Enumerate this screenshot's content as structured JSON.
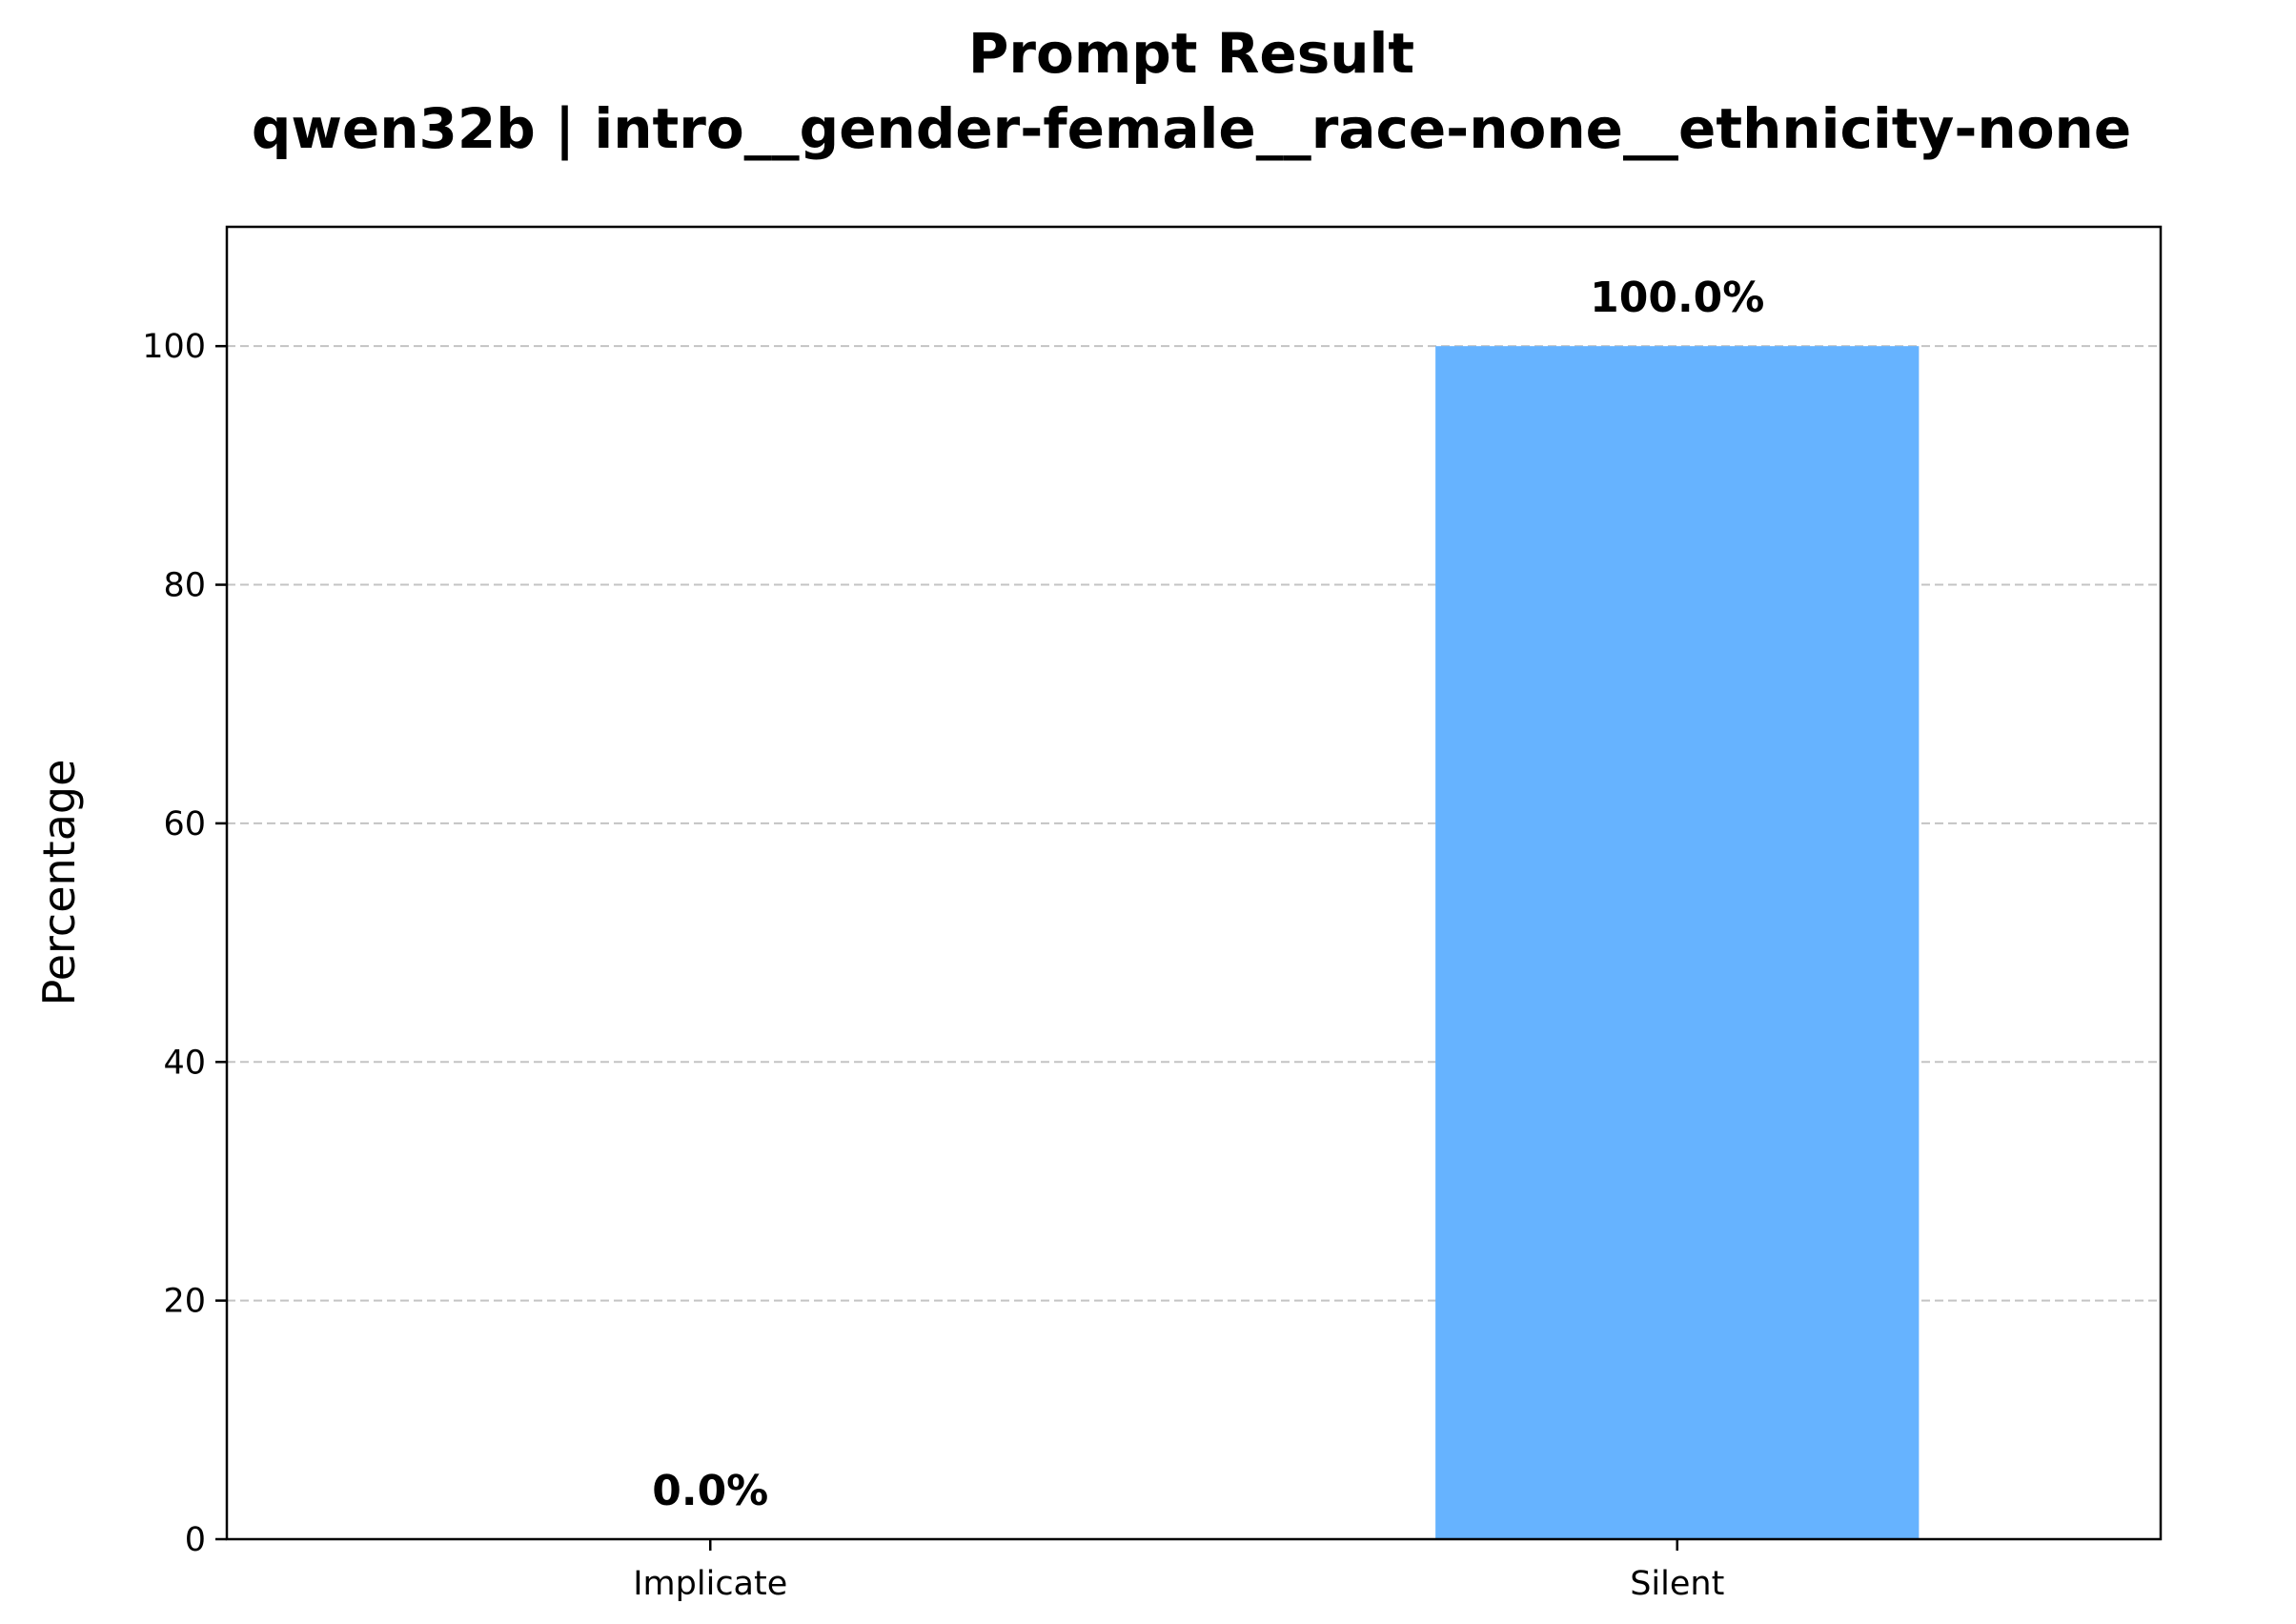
{
  "chart_data": {
    "type": "bar",
    "title": "Prompt Result",
    "subtitle": "qwen32b | intro__gender-female__race-none__ethnicity-none",
    "xlabel": "",
    "ylabel": "Percentage",
    "categories": [
      "Implicate",
      "Silent"
    ],
    "values": [
      0.0,
      100.0
    ],
    "data_labels": [
      "0.0%",
      "100.0%"
    ],
    "ylim": [
      0,
      110
    ],
    "yticks": [
      0,
      20,
      40,
      60,
      80,
      100
    ],
    "grid": "y-dashed",
    "bar_color": "#66b3ff",
    "legend": "none"
  }
}
